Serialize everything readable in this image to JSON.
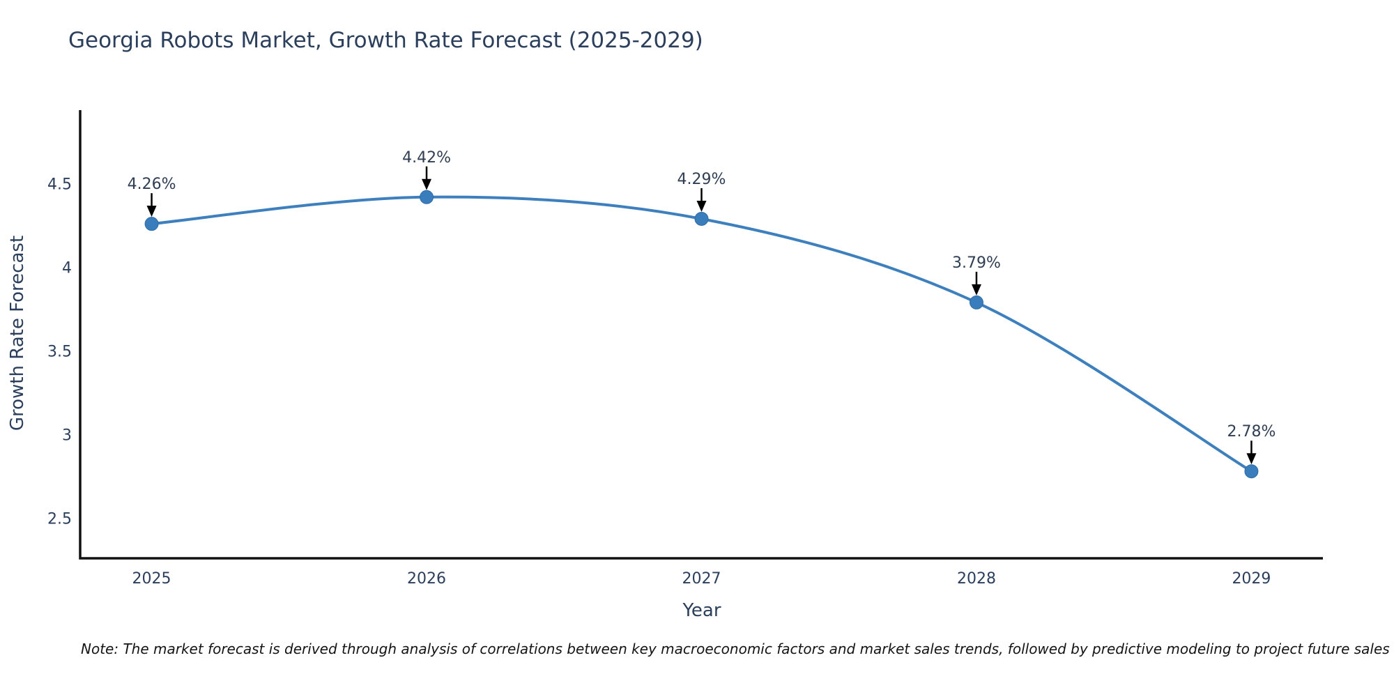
{
  "title": "Georgia Robots Market, Growth Rate Forecast (2025-2029)",
  "note": "Note: The market forecast is derived through analysis of correlations between key macroeconomic factors and market sales trends, followed by predictive modeling to project future sales",
  "chart_data": {
    "type": "line",
    "title": "Georgia Robots Market, Growth Rate Forecast (2025-2029)",
    "xlabel": "Year",
    "ylabel": "Growth Rate Forecast",
    "x": [
      2025,
      2026,
      2027,
      2028,
      2029
    ],
    "y": [
      4.26,
      4.42,
      4.29,
      3.79,
      2.78
    ],
    "point_labels": [
      "4.26%",
      "4.42%",
      "4.29%",
      "3.79%",
      "2.78%"
    ],
    "xticks": [
      2025,
      2026,
      2027,
      2028,
      2029
    ],
    "yticks": [
      2.5,
      3,
      3.5,
      4,
      4.5
    ],
    "xlim": [
      2024.74,
      2029.26
    ],
    "ylim": [
      2.26,
      4.94
    ],
    "grid": false,
    "legend": "none",
    "line_shape": "spline",
    "annotation_style": "label-with-down-arrow",
    "colors": {
      "line": "#3e80bd",
      "marker_fill": "#3a7dbd",
      "marker_stroke": "#2f6ba6",
      "arrow": "#000000",
      "axis": "#111111",
      "text": "#2b3f5c",
      "annotation_text": "#2f3e52",
      "note_text": "#141414",
      "background": "#ffffff"
    }
  }
}
